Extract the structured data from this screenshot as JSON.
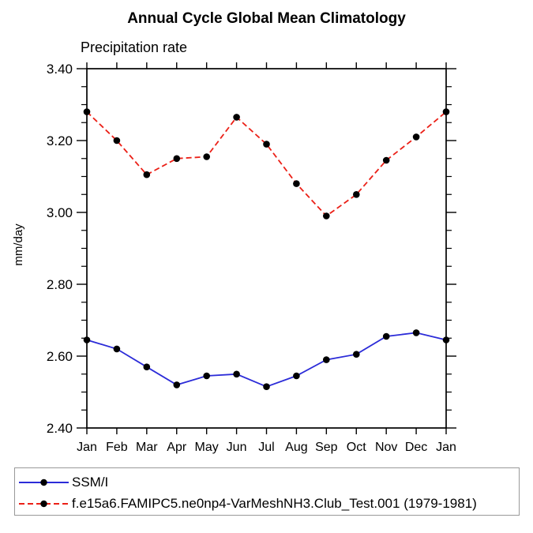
{
  "chart_data": {
    "type": "line",
    "title": "Annual Cycle Global Mean Climatology",
    "subtitle": "Precipitation rate",
    "ylabel": "mm/day",
    "xlabel": "",
    "categories": [
      "Jan",
      "Feb",
      "Mar",
      "Apr",
      "May",
      "Jun",
      "Jul",
      "Aug",
      "Sep",
      "Oct",
      "Nov",
      "Dec",
      "Jan"
    ],
    "ylim": [
      2.4,
      3.4
    ],
    "ytick_step": 0.2,
    "ytick_minor_step": 0.05,
    "ytick_labels": [
      "2.40",
      "2.60",
      "2.80",
      "3.00",
      "3.20",
      "3.40"
    ],
    "grid": false,
    "legend_position": "bottom",
    "frame_color": "#000000",
    "marker_color": "#000000",
    "legend_border_color": "#999999",
    "series": [
      {
        "name": "SSM/I",
        "color": "#2b2bd8",
        "style": "solid",
        "values": [
          2.645,
          2.62,
          2.57,
          2.52,
          2.545,
          2.55,
          2.515,
          2.545,
          2.59,
          2.605,
          2.655,
          2.665,
          2.645
        ]
      },
      {
        "name": "f.e15a6.FAMIPC5.ne0np4-VarMeshNH3.Club_Test.001 (1979-1981)",
        "color": "#eb2017",
        "style": "dashed",
        "values": [
          3.28,
          3.2,
          3.105,
          3.15,
          3.155,
          3.265,
          3.19,
          3.08,
          2.99,
          3.05,
          3.145,
          3.21,
          3.28
        ]
      }
    ]
  }
}
